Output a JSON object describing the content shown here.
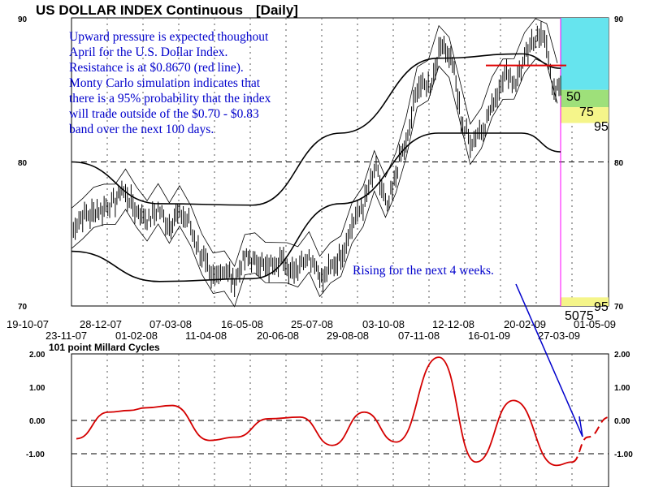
{
  "chart_data": [
    {
      "type": "candlestick",
      "title": "US DOLLAR INDEX Continuous",
      "period": "[Daily]",
      "ylim": [
        70,
        90
      ],
      "y_ticks": [
        "70",
        "80",
        "90"
      ],
      "x_tick_labels_row1": [
        "19-10-07",
        "28-12-07",
        "07-03-08",
        "16-05-08",
        "25-07-08",
        "03-10-08",
        "12-12-08",
        "20-02-09",
        "01-05-09"
      ],
      "x_tick_labels_row2": [
        "23-11-07",
        "01-02-08",
        "11-04-08",
        "20-06-08",
        "29-08-08",
        "07-11-08",
        "16-01-09",
        "27-03-09"
      ],
      "annotation": [
        "Upward pressure is expected thoughout",
        "April for the U.S. Dollar Index.",
        "Resistance is at $0.8670 (red line).",
        "Monty Carlo simulation indicates that",
        "there is a 95% probability that the index",
        "will trade outside of the $0.70 - $0.83",
        "band over the next 100 days."
      ],
      "resistance_level": 86.7,
      "price_series": [
        [
          "2007-10-19",
          75.2
        ],
        [
          "2007-10-29",
          76.2
        ],
        [
          "2007-11-08",
          76.4
        ],
        [
          "2007-11-23",
          76.8
        ],
        [
          "2007-12-05",
          77.2
        ],
        [
          "2007-12-12",
          78.1
        ],
        [
          "2007-12-20",
          77.4
        ],
        [
          "2007-12-28",
          76.6
        ],
        [
          "2008-01-10",
          76.0
        ],
        [
          "2008-01-20",
          76.8
        ],
        [
          "2008-02-01",
          75.6
        ],
        [
          "2008-02-10",
          76.4
        ],
        [
          "2008-02-20",
          76.1
        ],
        [
          "2008-03-01",
          74.4
        ],
        [
          "2008-03-07",
          73.6
        ],
        [
          "2008-03-17",
          71.6
        ],
        [
          "2008-03-25",
          72.6
        ],
        [
          "2008-04-04",
          72.4
        ],
        [
          "2008-04-11",
          71.6
        ],
        [
          "2008-04-22",
          73.4
        ],
        [
          "2008-05-01",
          73.2
        ],
        [
          "2008-05-16",
          72.6
        ],
        [
          "2008-05-28",
          73.3
        ],
        [
          "2008-06-10",
          72.6
        ],
        [
          "2008-06-20",
          72.8
        ],
        [
          "2008-06-28",
          73.6
        ],
        [
          "2008-07-08",
          72.8
        ],
        [
          "2008-07-15",
          71.8
        ],
        [
          "2008-07-25",
          72.8
        ],
        [
          "2008-08-05",
          73.8
        ],
        [
          "2008-08-15",
          75.6
        ],
        [
          "2008-08-29",
          77.3
        ],
        [
          "2008-09-10",
          79.6
        ],
        [
          "2008-09-22",
          76.6
        ],
        [
          "2008-10-03",
          79.6
        ],
        [
          "2008-10-14",
          81.6
        ],
        [
          "2008-10-24",
          85.4
        ],
        [
          "2008-11-07",
          85.3
        ],
        [
          "2008-11-20",
          88.3
        ],
        [
          "2008-12-01",
          86.8
        ],
        [
          "2008-12-12",
          82.4
        ],
        [
          "2008-12-20",
          81.4
        ],
        [
          "2009-01-05",
          82.6
        ],
        [
          "2009-01-16",
          84.6
        ],
        [
          "2009-01-26",
          86.2
        ],
        [
          "2009-02-07",
          85.6
        ],
        [
          "2009-02-20",
          87.6
        ],
        [
          "2009-03-02",
          89.0
        ],
        [
          "2009-03-12",
          88.2
        ],
        [
          "2009-03-20",
          84.6
        ],
        [
          "2009-03-27",
          85.4
        ]
      ],
      "envelope_upper_outer": [
        [
          0.0,
          80.0
        ],
        [
          0.18,
          77.1
        ],
        [
          0.37,
          77.0
        ],
        [
          0.55,
          82.0
        ],
        [
          0.75,
          87.2
        ],
        [
          0.92,
          87.5
        ],
        [
          1.0,
          86.5
        ]
      ],
      "envelope_lower_outer": [
        [
          0.0,
          73.8
        ],
        [
          0.18,
          71.7
        ],
        [
          0.37,
          71.9
        ],
        [
          0.55,
          77.1
        ],
        [
          0.75,
          82.0
        ],
        [
          0.92,
          82.0
        ],
        [
          1.0,
          80.7
        ]
      ],
      "monte_carlo_probabilities": {
        "upper": [
          {
            "label": "50",
            "level": 85.0
          },
          {
            "label": "75",
            "level": 83.8
          },
          {
            "label": "95",
            "level": 82.7
          }
        ],
        "lower": [
          {
            "label": "50",
            "level": 69.8
          },
          {
            "label": "75",
            "level": 69.8
          },
          {
            "label": "95",
            "level": 70.0
          }
        ]
      },
      "forecast_note": "Rising for the next 4 weeks."
    },
    {
      "type": "line",
      "title": "101 point Millard Cycles",
      "ylim": [
        -2.0,
        2.0
      ],
      "y_ticks": [
        "2.00",
        "1.00",
        "0.00",
        "-1.00"
      ],
      "cycle_points": [
        [
          0.0,
          -0.55
        ],
        [
          0.06,
          0.25
        ],
        [
          0.1,
          0.3
        ],
        [
          0.13,
          0.38
        ],
        [
          0.18,
          0.45
        ],
        [
          0.25,
          -0.6
        ],
        [
          0.3,
          -0.5
        ],
        [
          0.36,
          0.05
        ],
        [
          0.42,
          0.1
        ],
        [
          0.48,
          -0.75
        ],
        [
          0.54,
          0.25
        ],
        [
          0.6,
          -0.65
        ],
        [
          0.68,
          1.9
        ],
        [
          0.75,
          -1.25
        ],
        [
          0.82,
          0.6
        ],
        [
          0.9,
          -1.35
        ],
        [
          0.93,
          -1.25
        ],
        [
          0.96,
          -0.5
        ],
        [
          1.0,
          0.1
        ]
      ]
    }
  ]
}
